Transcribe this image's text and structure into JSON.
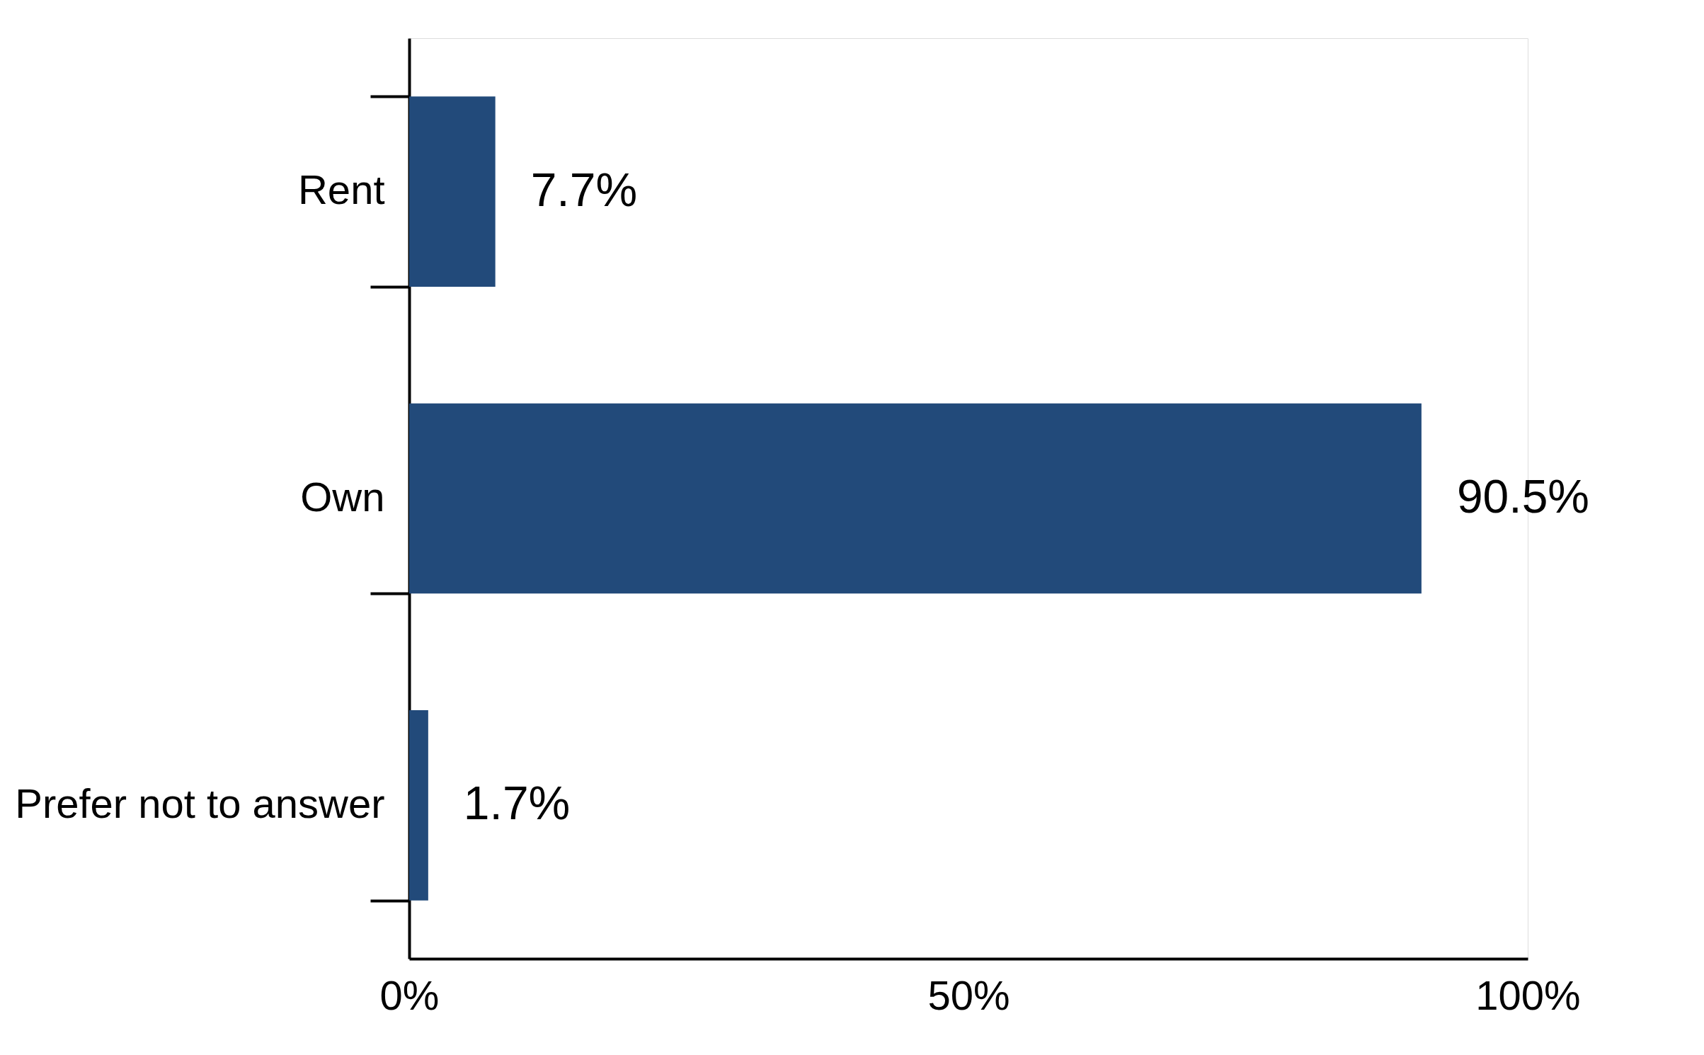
{
  "chart_data": {
    "type": "bar",
    "orientation": "horizontal",
    "categories": [
      "Rent",
      "Own",
      "Prefer not to answer"
    ],
    "values": [
      7.7,
      90.5,
      1.7
    ],
    "value_labels": [
      "7.7%",
      "90.5%",
      "1.7%"
    ],
    "color": "#224a7a",
    "xlim": [
      0,
      100
    ],
    "xticks": [
      {
        "value": 0,
        "label": "0%"
      },
      {
        "value": 50,
        "label": "50%"
      },
      {
        "value": 100,
        "label": "100%"
      }
    ],
    "grid": false
  }
}
